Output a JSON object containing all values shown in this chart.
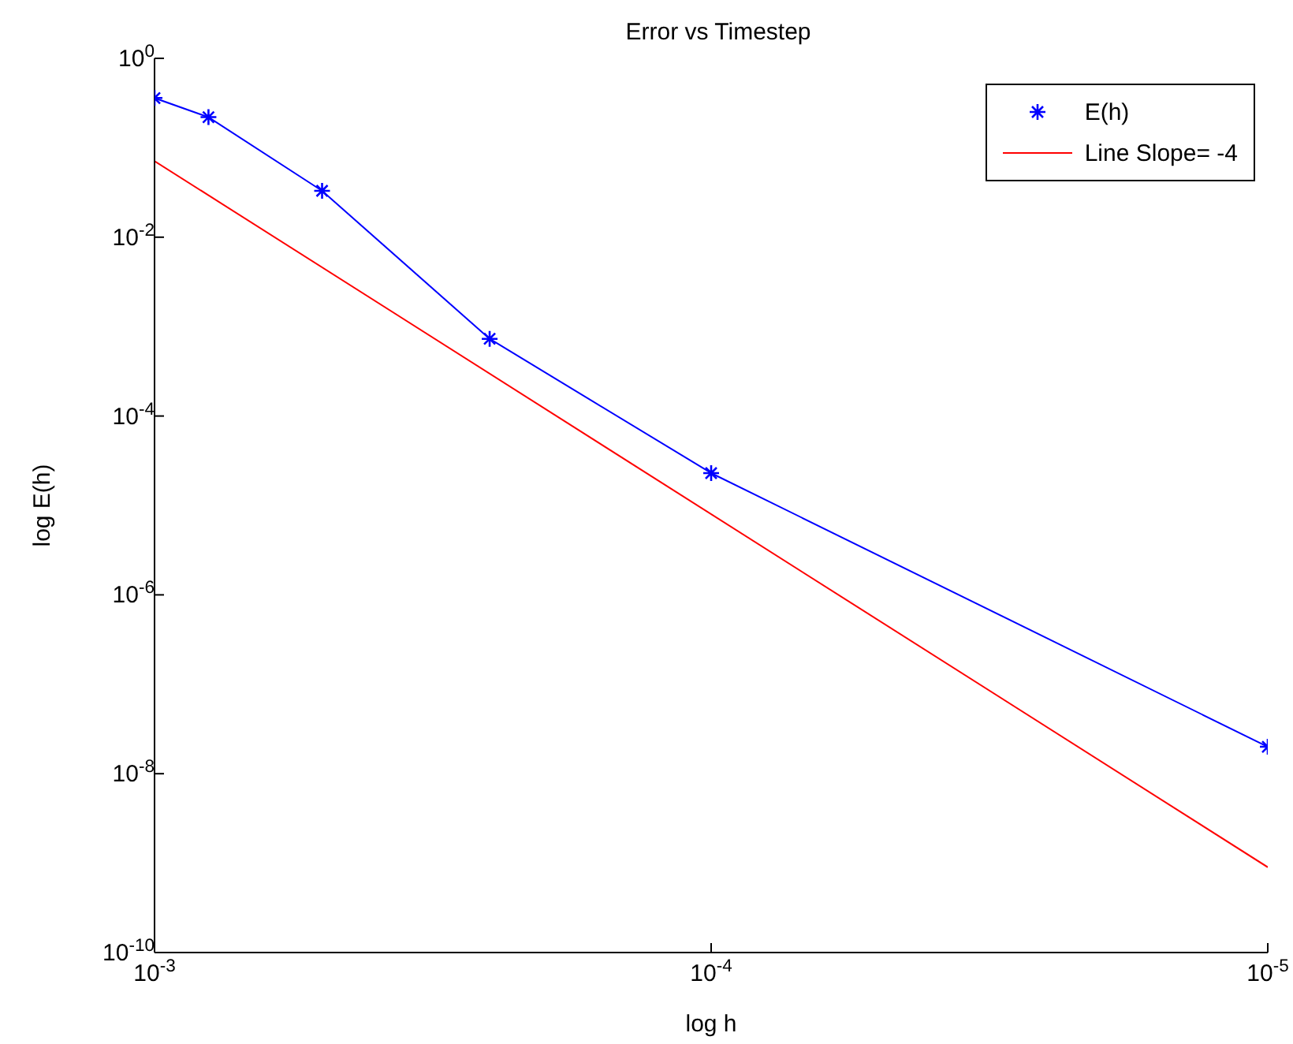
{
  "chart_data": {
    "type": "line",
    "title": "Error vs Timestep",
    "xlabel": "log h",
    "ylabel": "log E(h)",
    "log": "xy",
    "legend": "top right",
    "xlim": [
      0.001,
      1e-05
    ],
    "xticks": [
      {
        "value": 0.001,
        "label": "10$^{-3}$"
      },
      {
        "value": 0.0001,
        "label": "10$^{-4}$"
      },
      {
        "value": 1e-05,
        "label": "10$^{-5}$"
      }
    ],
    "ylim": [
      1e-10,
      1
    ],
    "yticks": [
      {
        "value": 1,
        "label": "10$^{0}$"
      },
      {
        "value": 0.01,
        "label": "10$^{-2}$"
      },
      {
        "value": 0.0001,
        "label": "10$^{-4}$"
      },
      {
        "value": 1e-06,
        "label": "10$^{-6}$"
      },
      {
        "value": 1e-08,
        "label": "10$^{-8}$"
      },
      {
        "value": 1e-10,
        "label": "10$^{-10}$"
      }
    ],
    "series": [
      {
        "name": "E(h)",
        "color": "#0000ff",
        "marker": "cross",
        "line_style": "solid",
        "x": [
          0.001,
          0.0008,
          0.0005,
          0.00025,
          0.0001,
          1e-05
        ],
        "values": [
          0.36,
          0.22,
          0.033,
          0.00073,
          2.3e-05,
          2e-08
        ]
      },
      {
        "name": "Line Slope= -4",
        "color": "#ff0000",
        "marker": "none",
        "line_style": "solid",
        "x": [
          0.001,
          1e-05
        ],
        "values": [
          0.071,
          9e-10
        ]
      }
    ]
  }
}
